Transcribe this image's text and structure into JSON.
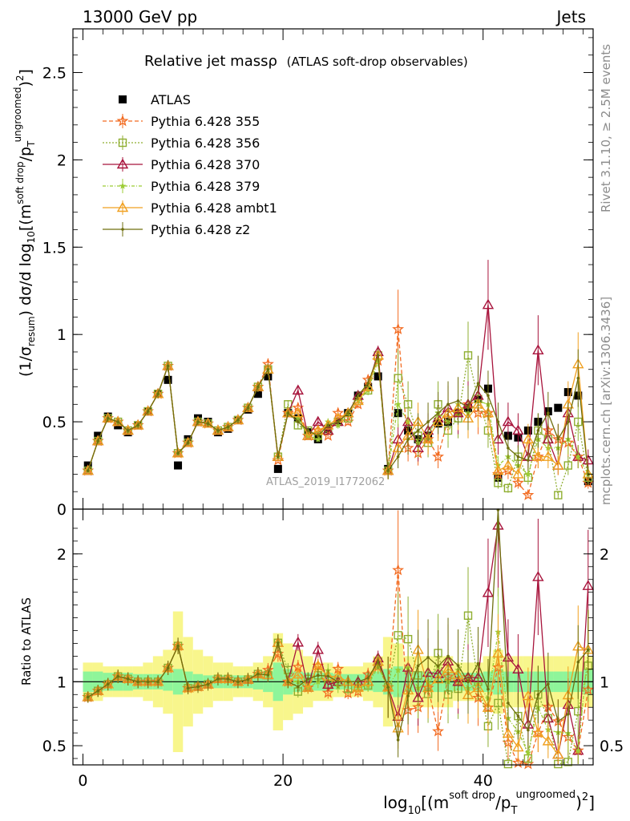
{
  "header": {
    "process": "13000 GeV pp",
    "category": "Jets",
    "plot_title": "Relative jet massρ",
    "plot_subtitle": "(ATLAS soft-drop observables)",
    "watermark": "ATLAS_2019_I1772062",
    "side_rivet": "Rivet 3.1.10, ≥ 2.5M events",
    "side_mcplots": "mcplots.cern.ch [arXiv:1306.3436]"
  },
  "chart_data": [
    {
      "type": "scatter",
      "panel": "main",
      "ylabel_parts": [
        "(1/σ",
        "resum",
        ") dσ/d log",
        "10",
        "[(m",
        "soft drop",
        "/p",
        "T",
        "ungroomed",
        ")",
        "2",
        "]"
      ],
      "xlim": [
        -1,
        51
      ],
      "ylim": [
        0,
        2.75
      ],
      "yticks": [
        0,
        0.5,
        1,
        1.5,
        2,
        2.5
      ],
      "grid": false,
      "legend_position": "top-left",
      "series": [
        {
          "name": "ATLAS",
          "color": "#000000",
          "marker": "square-filled",
          "values": [
            0.25,
            0.42,
            0.53,
            0.48,
            0.44,
            0.48,
            0.56,
            0.66,
            0.74,
            0.25,
            0.4,
            0.52,
            0.5,
            0.44,
            0.46,
            0.51,
            0.57,
            0.66,
            0.76,
            0.23,
            0.55,
            0.52,
            0.44,
            0.4,
            0.46,
            0.5,
            0.55,
            0.65,
            0.7,
            0.76,
            0.23,
            0.55,
            0.45,
            0.4,
            0.42,
            0.49,
            0.5,
            0.55,
            0.58,
            0.63,
            0.69,
            0.18,
            0.42,
            0.41,
            0.45,
            0.5,
            0.56,
            0.58,
            0.67,
            0.65,
            0.16
          ]
        },
        {
          "name": "Pythia 6.428 355",
          "color": "#f26b21",
          "marker": "star-open",
          "values": [
            0.22,
            0.39,
            0.52,
            0.5,
            0.45,
            0.48,
            0.56,
            0.66,
            0.82,
            0.32,
            0.38,
            0.5,
            0.49,
            0.45,
            0.47,
            0.51,
            0.58,
            0.7,
            0.83,
            0.28,
            0.55,
            0.58,
            0.42,
            0.45,
            0.42,
            0.55,
            0.5,
            0.6,
            0.74,
            0.85,
            0.22,
            1.03,
            0.35,
            0.32,
            0.4,
            0.3,
            0.52,
            0.55,
            0.6,
            0.55,
            0.55,
            0.2,
            0.22,
            0.15,
            0.08,
            0.3,
            0.45,
            0.4,
            0.38,
            0.3,
            0.15
          ]
        },
        {
          "name": "Pythia 6.428 356",
          "color": "#8fae30",
          "marker": "square-open",
          "values": [
            0.22,
            0.39,
            0.52,
            0.5,
            0.45,
            0.48,
            0.56,
            0.66,
            0.82,
            0.32,
            0.38,
            0.5,
            0.49,
            0.45,
            0.47,
            0.51,
            0.58,
            0.7,
            0.8,
            0.3,
            0.6,
            0.48,
            0.45,
            0.42,
            0.45,
            0.5,
            0.52,
            0.62,
            0.68,
            0.88,
            0.22,
            0.75,
            0.6,
            0.42,
            0.38,
            0.6,
            0.45,
            0.52,
            0.88,
            0.63,
            0.45,
            0.15,
            0.12,
            0.3,
            0.18,
            0.45,
            0.4,
            0.08,
            0.25,
            0.5,
            0.18
          ]
        },
        {
          "name": "Pythia 6.428 370",
          "color": "#a8143c",
          "marker": "triangle-open",
          "values": [
            0.22,
            0.39,
            0.52,
            0.5,
            0.45,
            0.48,
            0.56,
            0.66,
            0.82,
            0.32,
            0.38,
            0.5,
            0.49,
            0.45,
            0.47,
            0.51,
            0.58,
            0.7,
            0.8,
            0.3,
            0.55,
            0.68,
            0.42,
            0.5,
            0.45,
            0.5,
            0.55,
            0.65,
            0.7,
            0.9,
            0.22,
            0.4,
            0.5,
            0.35,
            0.45,
            0.52,
            0.58,
            0.55,
            0.6,
            0.65,
            1.17,
            0.4,
            0.5,
            0.45,
            0.3,
            0.91,
            0.4,
            0.25,
            0.55,
            0.3,
            0.28
          ]
        },
        {
          "name": "Pythia 6.428 379",
          "color": "#9ccc34",
          "marker": "star-filled",
          "values": [
            0.22,
            0.39,
            0.52,
            0.5,
            0.45,
            0.48,
            0.56,
            0.66,
            0.82,
            0.32,
            0.38,
            0.5,
            0.49,
            0.45,
            0.47,
            0.51,
            0.58,
            0.7,
            0.8,
            0.3,
            0.55,
            0.52,
            0.42,
            0.4,
            0.5,
            0.48,
            0.55,
            0.62,
            0.68,
            0.85,
            0.22,
            0.6,
            0.5,
            0.38,
            0.42,
            0.55,
            0.5,
            0.6,
            0.55,
            0.62,
            0.6,
            0.25,
            0.3,
            0.25,
            0.2,
            0.4,
            0.35,
            0.35,
            0.4,
            0.3,
            0.2
          ]
        },
        {
          "name": "Pythia 6.428 ambt1",
          "color": "#f0a020",
          "marker": "triangle-open",
          "values": [
            0.22,
            0.39,
            0.52,
            0.5,
            0.45,
            0.48,
            0.56,
            0.66,
            0.82,
            0.32,
            0.38,
            0.5,
            0.49,
            0.45,
            0.47,
            0.51,
            0.58,
            0.7,
            0.8,
            0.3,
            0.55,
            0.55,
            0.42,
            0.45,
            0.48,
            0.52,
            0.55,
            0.62,
            0.7,
            0.88,
            0.22,
            0.35,
            0.42,
            0.5,
            0.4,
            0.5,
            0.55,
            0.58,
            0.52,
            0.6,
            0.55,
            0.22,
            0.25,
            0.2,
            0.4,
            0.3,
            0.3,
            0.25,
            0.6,
            0.83,
            0.2
          ]
        },
        {
          "name": "Pythia 6.428 z2",
          "color": "#6f6f0f",
          "marker": "dot",
          "values": [
            0.22,
            0.39,
            0.52,
            0.5,
            0.45,
            0.48,
            0.56,
            0.66,
            0.82,
            0.32,
            0.38,
            0.5,
            0.49,
            0.45,
            0.47,
            0.51,
            0.58,
            0.7,
            0.8,
            0.3,
            0.55,
            0.5,
            0.45,
            0.42,
            0.48,
            0.5,
            0.55,
            0.65,
            0.72,
            0.88,
            0.22,
            0.3,
            0.4,
            0.45,
            0.5,
            0.55,
            0.6,
            0.62,
            0.58,
            0.72,
            0.65,
            0.5,
            0.35,
            0.3,
            0.28,
            0.45,
            0.55,
            0.4,
            0.5,
            0.75,
            0.2
          ]
        }
      ]
    },
    {
      "type": "scatter",
      "panel": "ratio",
      "ylabel": "Ratio to ATLAS",
      "xlabel_parts": [
        "log",
        "10",
        "[(m",
        "soft drop",
        "/p",
        "T",
        "ungroomed",
        ")",
        "2",
        "]"
      ],
      "xlim": [
        -1,
        51
      ],
      "xticks": [
        0,
        20,
        40
      ],
      "ylim": [
        0.35,
        2.35
      ],
      "yticks": [
        0.5,
        1,
        2
      ],
      "reference_line": 1,
      "bands": {
        "inner_color": "#8ef59a",
        "outer_color": "#f8f68c",
        "inner_halfwidth": [
          0.08,
          0.08,
          0.07,
          0.07,
          0.07,
          0.06,
          0.06,
          0.06,
          0.07,
          0.1,
          0.08,
          0.06,
          0.05,
          0.05,
          0.05,
          0.05,
          0.05,
          0.06,
          0.08,
          0.15,
          0.1,
          0.08,
          0.07,
          0.07,
          0.07,
          0.06,
          0.06,
          0.06,
          0.07,
          0.08,
          0.1,
          0.12,
          0.08,
          0.08,
          0.08,
          0.08,
          0.08,
          0.07,
          0.07,
          0.07,
          0.08,
          0.1,
          0.08,
          0.08,
          0.08,
          0.08,
          0.08,
          0.08,
          0.08,
          0.08,
          0.1
        ],
        "outer_halfwidth": [
          0.15,
          0.15,
          0.12,
          0.12,
          0.12,
          0.12,
          0.15,
          0.2,
          0.25,
          0.55,
          0.35,
          0.25,
          0.2,
          0.15,
          0.15,
          0.12,
          0.12,
          0.15,
          0.2,
          0.38,
          0.3,
          0.25,
          0.2,
          0.15,
          0.15,
          0.12,
          0.12,
          0.12,
          0.15,
          0.2,
          0.35,
          0.3,
          0.2,
          0.2,
          0.2,
          0.2,
          0.2,
          0.15,
          0.15,
          0.15,
          0.2,
          0.25,
          0.2,
          0.2,
          0.2,
          0.2,
          0.2,
          0.2,
          0.2,
          0.2,
          0.2
        ]
      }
    }
  ]
}
